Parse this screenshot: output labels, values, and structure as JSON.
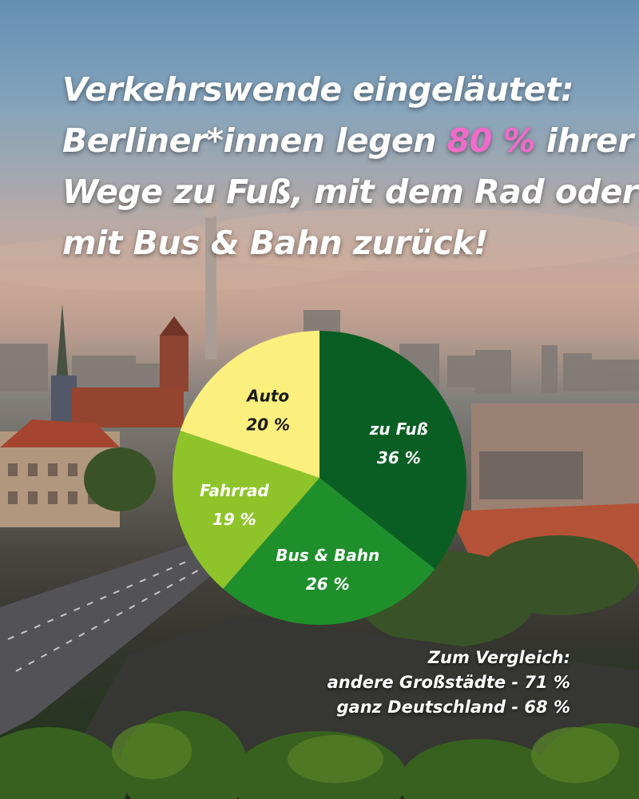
{
  "headline": {
    "line1": "Verkehrswende eingeläutet:",
    "line2_pre": "Berliner*innen legen ",
    "line2_highlight": "80 %",
    "line2_post": " ihrer",
    "line3": "Wege zu Fuß, mit dem Rad oder",
    "line4": "mit Bus & Bahn zurück!"
  },
  "colors": {
    "highlight": "#f06bc9",
    "zu_fuss": "#0b5e23",
    "bus_bahn": "#1f8f2c",
    "fahrrad": "#8ec42a",
    "auto": "#fbef7e"
  },
  "chart_data": {
    "type": "pie",
    "start": "12 o'clock",
    "direction": "clockwise",
    "slices": [
      {
        "label": "zu Fuß",
        "value": 36,
        "display": "36 %",
        "color": "#0b5e23",
        "text_color": "#ffffff"
      },
      {
        "label": "Bus & Bahn",
        "value": 26,
        "display": "26 %",
        "color": "#1f8f2c",
        "text_color": "#ffffff"
      },
      {
        "label": "Fahrrad",
        "value": 19,
        "display": "19 %",
        "color": "#8ec42a",
        "text_color": "#ffffff"
      },
      {
        "label": "Auto",
        "value": 20,
        "display": "20 %",
        "color": "#fbef7e",
        "text_color": "#1a1a1a"
      }
    ]
  },
  "comparison": {
    "title": "Zum Vergleich:",
    "line1": "andere Großstädte - 71 %",
    "line2": "ganz Deutschland - 68 %"
  }
}
